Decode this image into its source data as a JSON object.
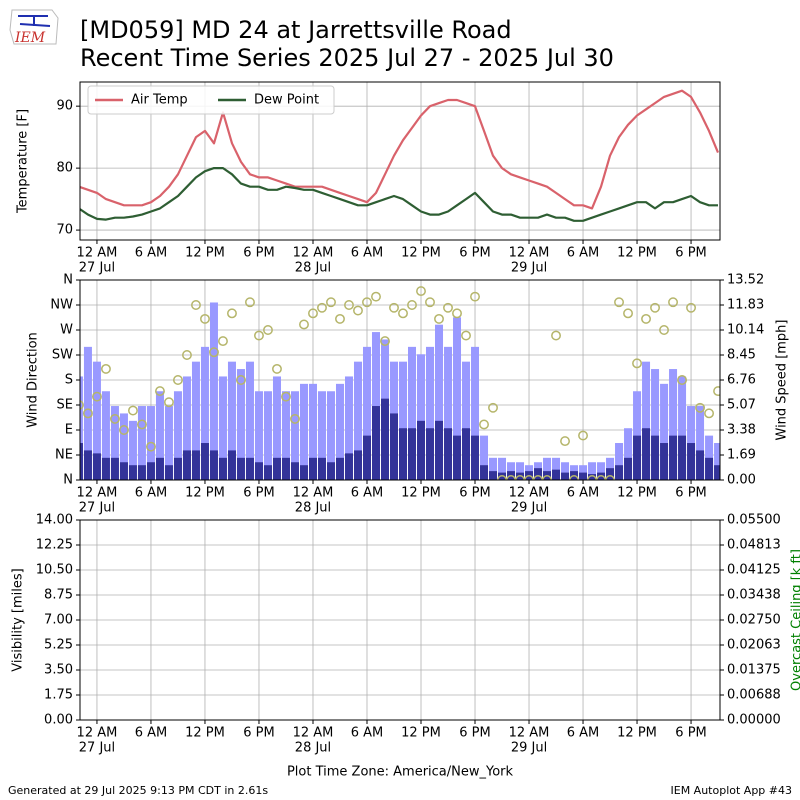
{
  "header": {
    "logo": "IEM",
    "title": "[MD059] MD 24 at Jarrettsville Road",
    "subtitle": "Recent Time Series 2025 Jul 27 - 2025 Jul 30"
  },
  "footer": {
    "generated": "Generated at 29 Jul 2025 9:13 PM CDT in 2.61s",
    "app": "IEM Autoplot App #43"
  },
  "chart_data": [
    {
      "type": "line",
      "ylabel": "Temperature [F]",
      "legend": "upper left",
      "grid": true,
      "xlim": [
        "2025-07-26T22:07",
        "2025-07-29T21:13"
      ],
      "ylim": [
        68.4,
        93.9
      ],
      "yticks": [
        70,
        80,
        90
      ],
      "xticks": [
        {
          "value": "2025-07-27T00:00",
          "label": "12 AM"
        },
        {
          "value": "2025-07-27T06:00",
          "label": "6 AM"
        },
        {
          "value": "2025-07-27T12:00",
          "label": "12 PM"
        },
        {
          "value": "2025-07-27T18:00",
          "label": "6 PM"
        },
        {
          "value": "2025-07-28T00:00",
          "label": "12 AM"
        },
        {
          "value": "2025-07-28T06:00",
          "label": "6 AM"
        },
        {
          "value": "2025-07-28T12:00",
          "label": "12 PM"
        },
        {
          "value": "2025-07-28T18:00",
          "label": "6 PM"
        },
        {
          "value": "2025-07-29T00:00",
          "label": "12 AM"
        },
        {
          "value": "2025-07-29T06:00",
          "label": "6 AM"
        },
        {
          "value": "2025-07-29T12:00",
          "label": "12 PM"
        },
        {
          "value": "2025-07-29T18:00",
          "label": "6 PM"
        }
      ],
      "xdate_labels": [
        {
          "value": "2025-07-27T00:00",
          "label": "27 Jul"
        },
        {
          "value": "2025-07-28T00:00",
          "label": "28 Jul"
        },
        {
          "value": "2025-07-29T00:00",
          "label": "29 Jul"
        }
      ],
      "x": [
        "2025-07-26T22:00",
        "2025-07-26T23:00",
        "2025-07-27T00:00",
        "2025-07-27T01:00",
        "2025-07-27T02:00",
        "2025-07-27T03:00",
        "2025-07-27T04:00",
        "2025-07-27T05:00",
        "2025-07-27T06:00",
        "2025-07-27T07:00",
        "2025-07-27T08:00",
        "2025-07-27T09:00",
        "2025-07-27T10:00",
        "2025-07-27T11:00",
        "2025-07-27T12:00",
        "2025-07-27T13:00",
        "2025-07-27T14:00",
        "2025-07-27T15:00",
        "2025-07-27T16:00",
        "2025-07-27T17:00",
        "2025-07-27T18:00",
        "2025-07-27T19:00",
        "2025-07-27T20:00",
        "2025-07-27T21:00",
        "2025-07-27T22:00",
        "2025-07-27T23:00",
        "2025-07-28T00:00",
        "2025-07-28T01:00",
        "2025-07-28T02:00",
        "2025-07-28T03:00",
        "2025-07-28T04:00",
        "2025-07-28T05:00",
        "2025-07-28T06:00",
        "2025-07-28T07:00",
        "2025-07-28T08:00",
        "2025-07-28T09:00",
        "2025-07-28T10:00",
        "2025-07-28T11:00",
        "2025-07-28T12:00",
        "2025-07-28T13:00",
        "2025-07-28T14:00",
        "2025-07-28T15:00",
        "2025-07-28T16:00",
        "2025-07-28T17:00",
        "2025-07-28T18:00",
        "2025-07-28T19:00",
        "2025-07-28T20:00",
        "2025-07-28T21:00",
        "2025-07-28T22:00",
        "2025-07-28T23:00",
        "2025-07-29T00:00",
        "2025-07-29T01:00",
        "2025-07-29T02:00",
        "2025-07-29T03:00",
        "2025-07-29T04:00",
        "2025-07-29T05:00",
        "2025-07-29T06:00",
        "2025-07-29T07:00",
        "2025-07-29T08:00",
        "2025-07-29T09:00",
        "2025-07-29T10:00",
        "2025-07-29T11:00",
        "2025-07-29T12:00",
        "2025-07-29T13:00",
        "2025-07-29T14:00",
        "2025-07-29T15:00",
        "2025-07-29T16:00",
        "2025-07-29T17:00",
        "2025-07-29T18:00",
        "2025-07-29T19:00",
        "2025-07-29T20:00",
        "2025-07-29T21:00"
      ],
      "series": [
        {
          "name": "Air Temp",
          "color": "#d9626b",
          "values": [
            77,
            76.5,
            76,
            75,
            74.5,
            74,
            74,
            74,
            74.5,
            75.5,
            77,
            79,
            82,
            85,
            86,
            84,
            89,
            84,
            81,
            79,
            78.5,
            78.5,
            78,
            77.5,
            77,
            77,
            77,
            77,
            76.5,
            76,
            75.5,
            75,
            74.5,
            76,
            79,
            82,
            84.5,
            86.5,
            88.5,
            90,
            90.5,
            91,
            91,
            90.5,
            90,
            86,
            82,
            80,
            79,
            78.5,
            78,
            77.5,
            77,
            76,
            75,
            74,
            74,
            73.5,
            77,
            82,
            85,
            87,
            88.5,
            89.5,
            90.5,
            91.5,
            92,
            92.5,
            91.5,
            89,
            86,
            82.5
          ]
        },
        {
          "name": "Dew Point",
          "color": "#2e5e33",
          "values": [
            73.5,
            72.5,
            71.8,
            71.7,
            72,
            72,
            72.2,
            72.5,
            73,
            73.5,
            74.5,
            75.5,
            77,
            78.5,
            79.5,
            80,
            80,
            79,
            77.5,
            77,
            77,
            76.5,
            76.5,
            77,
            76.8,
            76.5,
            76.5,
            76,
            75.5,
            75,
            74.5,
            74,
            74,
            74.5,
            75,
            75.5,
            75,
            74,
            73,
            72.5,
            72.5,
            73,
            74,
            75,
            76,
            74.5,
            73,
            72.5,
            72.5,
            72,
            72,
            72,
            72.5,
            72,
            72,
            71.5,
            71.5,
            72,
            72.5,
            73,
            73.5,
            74,
            74.5,
            74.5,
            73.5,
            74.5,
            74.5,
            75,
            75.5,
            74.5,
            74,
            74
          ]
        }
      ]
    },
    {
      "type": "combo",
      "ylabel": "Wind Direction",
      "y2label": "Wind Speed [mph]",
      "grid": true,
      "xlim": [
        "2025-07-26T22:07",
        "2025-07-29T21:13"
      ],
      "ylim": [
        0,
        360
      ],
      "yticks": [
        {
          "value": 0,
          "label": "N"
        },
        {
          "value": 45,
          "label": "NE"
        },
        {
          "value": 90,
          "label": "E"
        },
        {
          "value": 135,
          "label": "SE"
        },
        {
          "value": 180,
          "label": "S"
        },
        {
          "value": 225,
          "label": "SW"
        },
        {
          "value": 270,
          "label": "W"
        },
        {
          "value": 315,
          "label": "NW"
        },
        {
          "value": 360,
          "label": "N"
        }
      ],
      "y2lim": [
        0,
        13.52
      ],
      "y2ticks": [
        {
          "value": 0,
          "label": "0.00"
        },
        1.69,
        3.38,
        5.07,
        6.76,
        8.45,
        10.14,
        11.83,
        13.52
      ],
      "xticks": [
        {
          "value": "2025-07-27T00:00",
          "label": "12 AM"
        },
        {
          "value": "2025-07-27T06:00",
          "label": "6 AM"
        },
        {
          "value": "2025-07-27T12:00",
          "label": "12 PM"
        },
        {
          "value": "2025-07-27T18:00",
          "label": "6 PM"
        },
        {
          "value": "2025-07-28T00:00",
          "label": "12 AM"
        },
        {
          "value": "2025-07-28T06:00",
          "label": "6 AM"
        },
        {
          "value": "2025-07-28T12:00",
          "label": "12 PM"
        },
        {
          "value": "2025-07-28T18:00",
          "label": "6 PM"
        },
        {
          "value": "2025-07-29T00:00",
          "label": "12 AM"
        },
        {
          "value": "2025-07-29T06:00",
          "label": "6 AM"
        },
        {
          "value": "2025-07-29T12:00",
          "label": "12 PM"
        },
        {
          "value": "2025-07-29T18:00",
          "label": "6 PM"
        }
      ],
      "xdate_labels": [
        {
          "value": "2025-07-27T00:00",
          "label": "27 Jul"
        },
        {
          "value": "2025-07-28T00:00",
          "label": "28 Jul"
        },
        {
          "value": "2025-07-29T00:00",
          "label": "29 Jul"
        }
      ],
      "x": [
        "2025-07-26T22:00",
        "2025-07-26T23:00",
        "2025-07-27T00:00",
        "2025-07-27T01:00",
        "2025-07-27T02:00",
        "2025-07-27T03:00",
        "2025-07-27T04:00",
        "2025-07-27T05:00",
        "2025-07-27T06:00",
        "2025-07-27T07:00",
        "2025-07-27T08:00",
        "2025-07-27T09:00",
        "2025-07-27T10:00",
        "2025-07-27T11:00",
        "2025-07-27T12:00",
        "2025-07-27T13:00",
        "2025-07-27T14:00",
        "2025-07-27T15:00",
        "2025-07-27T16:00",
        "2025-07-27T17:00",
        "2025-07-27T18:00",
        "2025-07-27T19:00",
        "2025-07-27T20:00",
        "2025-07-27T21:00",
        "2025-07-27T22:00",
        "2025-07-27T23:00",
        "2025-07-28T00:00",
        "2025-07-28T01:00",
        "2025-07-28T02:00",
        "2025-07-28T03:00",
        "2025-07-28T04:00",
        "2025-07-28T05:00",
        "2025-07-28T06:00",
        "2025-07-28T07:00",
        "2025-07-28T08:00",
        "2025-07-28T09:00",
        "2025-07-28T10:00",
        "2025-07-28T11:00",
        "2025-07-28T12:00",
        "2025-07-28T13:00",
        "2025-07-28T14:00",
        "2025-07-28T15:00",
        "2025-07-28T16:00",
        "2025-07-28T17:00",
        "2025-07-28T18:00",
        "2025-07-28T19:00",
        "2025-07-28T20:00",
        "2025-07-28T21:00",
        "2025-07-28T22:00",
        "2025-07-28T23:00",
        "2025-07-29T00:00",
        "2025-07-29T01:00",
        "2025-07-29T02:00",
        "2025-07-29T03:00",
        "2025-07-29T04:00",
        "2025-07-29T05:00",
        "2025-07-29T06:00",
        "2025-07-29T07:00",
        "2025-07-29T08:00",
        "2025-07-29T09:00",
        "2025-07-29T10:00",
        "2025-07-29T11:00",
        "2025-07-29T12:00",
        "2025-07-29T13:00",
        "2025-07-29T14:00",
        "2025-07-29T15:00",
        "2025-07-29T16:00",
        "2025-07-29T17:00",
        "2025-07-29T18:00",
        "2025-07-29T19:00",
        "2025-07-29T20:00",
        "2025-07-29T21:00"
      ],
      "series": [
        {
          "type": "bar",
          "axis": "y2",
          "color": "#9999ff",
          "values": [
            7,
            9,
            8,
            6,
            5,
            4.5,
            4,
            5,
            5,
            6,
            5,
            6,
            7,
            8,
            9,
            12,
            7,
            8,
            7.5,
            8,
            6,
            6,
            7,
            6,
            6,
            6.5,
            6.5,
            6,
            6,
            6.5,
            7,
            8,
            9,
            10,
            9.5,
            8,
            8,
            9,
            8.5,
            9,
            10.5,
            9,
            11,
            8,
            9,
            3,
            1.5,
            1.5,
            1.2,
            1.2,
            1,
            1.2,
            1.5,
            1.5,
            1.2,
            1,
            1,
            1.2,
            1.2,
            1.5,
            2.5,
            3.5,
            6,
            8,
            7.5,
            6.5,
            7.5,
            7,
            5,
            5,
            3,
            2.5
          ]
        },
        {
          "type": "bar",
          "axis": "y2",
          "color": "#333399",
          "values": [
            2.5,
            2,
            1.8,
            1.5,
            1.5,
            1.2,
            1,
            1,
            1.2,
            1.5,
            1,
            1.5,
            2,
            2,
            2.5,
            2,
            1.5,
            2,
            1.5,
            1.5,
            1.2,
            1,
            1.5,
            1.5,
            1.2,
            1,
            1.5,
            1.5,
            1.2,
            1.5,
            1.8,
            2,
            3,
            5,
            5.5,
            4.5,
            3.5,
            3.5,
            4,
            3.5,
            4,
            3.5,
            3,
            3.5,
            3,
            1,
            0.6,
            0.5,
            0.6,
            0.5,
            0.6,
            0.8,
            0.6,
            0.7,
            0.5,
            0.6,
            0.5,
            0.4,
            0.5,
            0.8,
            1,
            1.5,
            3,
            3.5,
            3,
            2.5,
            3,
            3,
            2.5,
            2,
            1.5,
            1
          ]
        },
        {
          "type": "scatter",
          "color": "#b5b56a",
          "values": [
            135,
            120,
            150,
            200,
            110,
            90,
            125,
            100,
            60,
            160,
            140,
            180,
            225,
            315,
            290,
            230,
            250,
            300,
            180,
            320,
            260,
            270,
            200,
            150,
            110,
            280,
            300,
            310,
            320,
            290,
            315,
            305,
            320,
            330,
            250,
            310,
            300,
            315,
            340,
            320,
            290,
            310,
            300,
            260,
            330,
            100,
            130,
            0,
            0,
            0,
            0,
            0,
            0,
            260,
            70,
            0,
            80,
            0,
            0,
            0,
            320,
            300,
            210,
            290,
            310,
            270,
            320,
            180,
            310,
            130,
            120,
            160
          ]
        }
      ]
    },
    {
      "type": "line",
      "ylabel": "Visibility [miles]",
      "y2label": "Overcast Ceiling [k ft]",
      "y2label_color": "#008000",
      "xlabel": "Plot Time Zone: America/New_York",
      "grid": true,
      "xlim": [
        "2025-07-26T22:07",
        "2025-07-29T21:13"
      ],
      "ylim": [
        0,
        14
      ],
      "yticks": [
        {
          "value": 0,
          "label": "0.00"
        },
        1.75,
        {
          "value": 3.5,
          "label": "3.50"
        },
        5.25,
        {
          "value": 7,
          "label": "7.00"
        },
        8.75,
        {
          "value": 10.5,
          "label": "10.50"
        },
        12.25,
        {
          "value": 14,
          "label": "14.00"
        }
      ],
      "y2lim": [
        0,
        0.055
      ],
      "y2ticks": [
        {
          "value": 0,
          "label": "0.00000"
        },
        {
          "value": 0.006875,
          "label": "0.00688"
        },
        {
          "value": 0.01375,
          "label": "0.01375"
        },
        {
          "value": 0.020625,
          "label": "0.02063"
        },
        {
          "value": 0.0275,
          "label": "0.02750"
        },
        {
          "value": 0.034375,
          "label": "0.03438"
        },
        {
          "value": 0.04125,
          "label": "0.04125"
        },
        {
          "value": 0.048125,
          "label": "0.04813"
        },
        {
          "value": 0.055,
          "label": "0.05500"
        }
      ],
      "xticks": [
        {
          "value": "2025-07-27T00:00",
          "label": "12 AM"
        },
        {
          "value": "2025-07-27T06:00",
          "label": "6 AM"
        },
        {
          "value": "2025-07-27T12:00",
          "label": "12 PM"
        },
        {
          "value": "2025-07-27T18:00",
          "label": "6 PM"
        },
        {
          "value": "2025-07-28T00:00",
          "label": "12 AM"
        },
        {
          "value": "2025-07-28T06:00",
          "label": "6 AM"
        },
        {
          "value": "2025-07-28T12:00",
          "label": "12 PM"
        },
        {
          "value": "2025-07-28T18:00",
          "label": "6 PM"
        },
        {
          "value": "2025-07-29T00:00",
          "label": "12 AM"
        },
        {
          "value": "2025-07-29T06:00",
          "label": "6 AM"
        },
        {
          "value": "2025-07-29T12:00",
          "label": "12 PM"
        },
        {
          "value": "2025-07-29T18:00",
          "label": "6 PM"
        }
      ],
      "xdate_labels": [
        {
          "value": "2025-07-27T00:00",
          "label": "27 Jul"
        },
        {
          "value": "2025-07-28T00:00",
          "label": "28 Jul"
        },
        {
          "value": "2025-07-29T00:00",
          "label": "29 Jul"
        }
      ],
      "series": []
    }
  ]
}
